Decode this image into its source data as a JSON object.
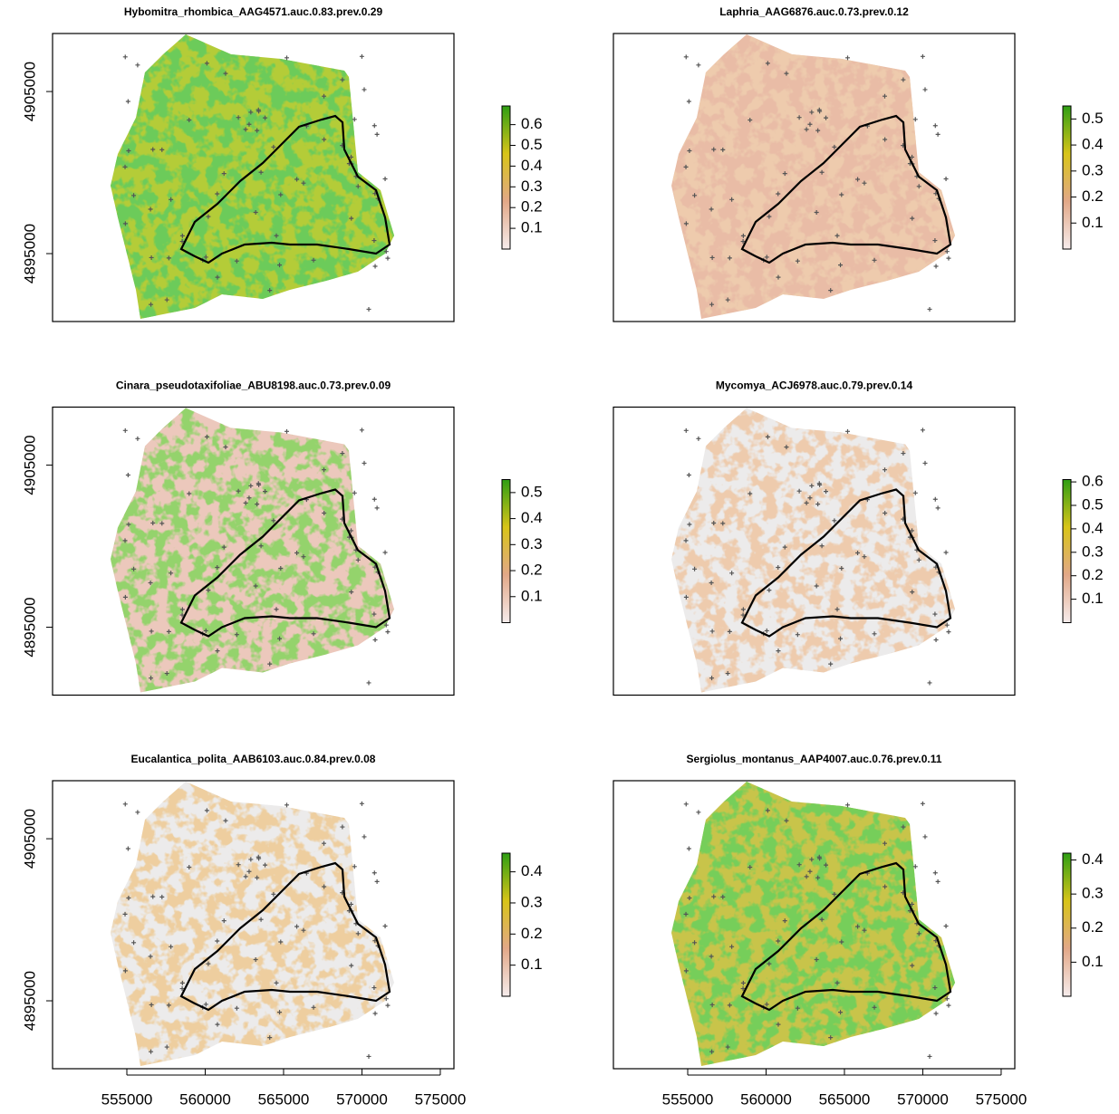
{
  "chart_data": [
    {
      "type": "raster",
      "title": "Hybomitra_rhombica_AAG4571.auc.0.83.prev.0.29",
      "xlim": [
        550260,
        575870
      ],
      "ylim": [
        4890810,
        4908580
      ],
      "yticks": [
        4895000,
        4905000
      ],
      "zlim": [
        0,
        0.69
      ],
      "zticks": [
        0.1,
        0.2,
        0.3,
        0.4,
        0.5,
        0.6
      ],
      "colors": [
        "#f6ecec",
        "#e2a888",
        "#d8c418",
        "#2e9e14"
      ]
    },
    {
      "type": "raster",
      "title": "Laphria_AAG6876.auc.0.73.prev.0.12",
      "xlim": [
        550260,
        575870
      ],
      "ylim": [
        4890810,
        4908580
      ],
      "zlim": [
        0,
        0.55
      ],
      "zticks": [
        0.1,
        0.2,
        0.3,
        0.4,
        0.5
      ],
      "colors": [
        "#f6ecec",
        "#e2a888",
        "#d8c418",
        "#2e9e14"
      ]
    },
    {
      "type": "raster",
      "title": "Cinara_pseudotaxifoliae_ABU8198.auc.0.73.prev.0.09",
      "xlim": [
        550260,
        575870
      ],
      "ylim": [
        4890810,
        4908580
      ],
      "yticks": [
        4895000,
        4905000
      ],
      "zlim": [
        0,
        0.55
      ],
      "zticks": [
        0.1,
        0.2,
        0.3,
        0.4,
        0.5
      ],
      "colors": [
        "#f6ecec",
        "#e2a888",
        "#d8c418",
        "#2e9e14"
      ]
    },
    {
      "type": "raster",
      "title": "Mycomya_ACJ6978.auc.0.79.prev.0.14",
      "xlim": [
        550260,
        575870
      ],
      "ylim": [
        4890810,
        4908580
      ],
      "zlim": [
        0,
        0.61
      ],
      "zticks": [
        0.1,
        0.2,
        0.3,
        0.4,
        0.5,
        0.6
      ],
      "colors": [
        "#f6ecec",
        "#e2a888",
        "#d8c418",
        "#2e9e14"
      ]
    },
    {
      "type": "raster",
      "title": "Eucalantica_polita_AAB6103.auc.0.84.prev.0.08",
      "xlim": [
        550260,
        575870
      ],
      "ylim": [
        4890810,
        4908580
      ],
      "yticks": [
        4895000,
        4905000
      ],
      "xticks": [
        555000,
        560000,
        565000,
        570000,
        575000
      ],
      "zlim": [
        0,
        0.46
      ],
      "zticks": [
        0.1,
        0.2,
        0.3,
        0.4
      ],
      "colors": [
        "#f6ecec",
        "#e2a888",
        "#d8c418",
        "#2e9e14"
      ]
    },
    {
      "type": "raster",
      "title": "Sergiolus_montanus_AAP4007.auc.0.76.prev.0.11",
      "xlim": [
        550260,
        575870
      ],
      "ylim": [
        4890810,
        4908580
      ],
      "xticks": [
        555000,
        560000,
        565000,
        570000,
        575000
      ],
      "zlim": [
        0,
        0.42
      ],
      "zticks": [
        0.1,
        0.2,
        0.3,
        0.4
      ],
      "colors": [
        "#f6ecec",
        "#e2a888",
        "#d8c418",
        "#2e9e14"
      ]
    }
  ]
}
